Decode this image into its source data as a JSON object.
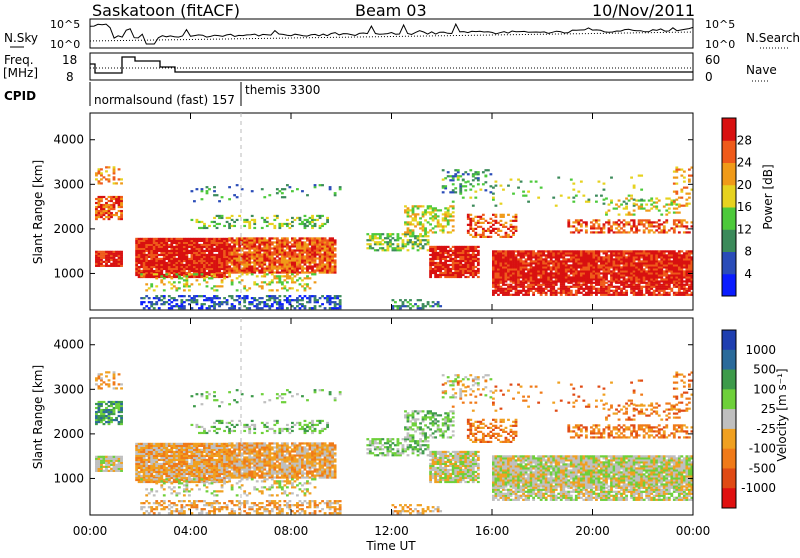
{
  "header": {
    "site": "Saskatoon (fitACF)",
    "beam": "Beam 03",
    "date": "10/Nov/2011"
  },
  "top_panels": {
    "nsky_label": "N.Sky",
    "nsearch_label": "N.Search",
    "nsky_ticks": [
      "10^5",
      "10^0"
    ],
    "nsearch_ticks": [
      "10^5",
      "10^0"
    ],
    "freq_label_1": "Freq.",
    "freq_label_2": "[MHz]",
    "freq_ticks": [
      "18",
      "8"
    ],
    "nave_label": "Nave",
    "nave_ticks": [
      "60",
      "0"
    ],
    "cpid_label": "CPID",
    "cpid_entries": [
      {
        "text": "normalsound (fast) 157",
        "t_hours": 0.1
      },
      {
        "text": "themis 3300",
        "t_hours": 6.0
      }
    ]
  },
  "chart_data": [
    {
      "type": "heatmap",
      "title": "",
      "ylabel": "Slant Range [km]",
      "ylim": [
        180,
        4600
      ],
      "yticks": [
        "1000",
        "2000",
        "3000",
        "4000"
      ],
      "colorbar": {
        "label": "Power [dB]",
        "ticks": [
          "4",
          "8",
          "12",
          "16",
          "20",
          "24",
          "28"
        ],
        "colors": [
          "#0a1cff",
          "#2a4cb8",
          "#3b8a5a",
          "#4cc93a",
          "#e6d21f",
          "#f09a18",
          "#ef5a1a",
          "#d81010"
        ]
      }
    },
    {
      "type": "heatmap",
      "title": "",
      "ylabel": "Slant Range [km]",
      "ylim": [
        180,
        4600
      ],
      "yticks": [
        "1000",
        "2000",
        "3000",
        "4000"
      ],
      "colorbar": {
        "label": "Velocity [m s⁻¹]",
        "ticks": [
          "1000",
          "500",
          "100",
          "25",
          "-25",
          "-100",
          "-500",
          "-1000"
        ],
        "colors": [
          "#1f3fb0",
          "#2a6a9a",
          "#3d9a4a",
          "#6ed03a",
          "#bfbfbf",
          "#f0a020",
          "#f07a18",
          "#e04a14",
          "#e01010"
        ]
      }
    }
  ],
  "x_axis": {
    "label": "Time UT",
    "ticks": [
      "00:00",
      "04:00",
      "08:00",
      "12:00",
      "16:00",
      "20:00",
      "00:00"
    ]
  }
}
